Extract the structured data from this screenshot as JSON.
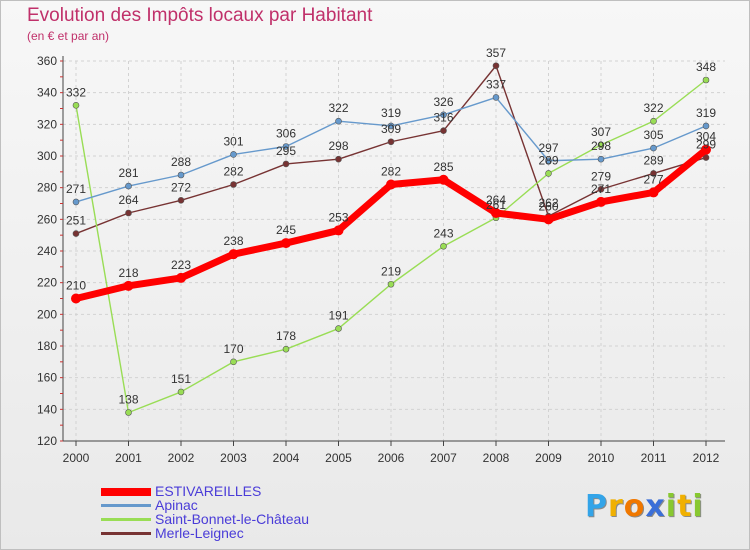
{
  "colors": {
    "title": "#c0306a",
    "legend_text": "#4a3cd8"
  },
  "chart_data": {
    "type": "line",
    "title": "Evolution des Impôts locaux par Habitant",
    "subtitle": "(en € et par an)",
    "xlabel": "",
    "ylabel": "",
    "x": [
      "2000",
      "2001",
      "2002",
      "2003",
      "2004",
      "2005",
      "2006",
      "2007",
      "2008",
      "2009",
      "2010",
      "2011",
      "2012"
    ],
    "ylim": [
      120,
      360
    ],
    "yticks": [
      120,
      140,
      160,
      180,
      200,
      220,
      240,
      260,
      280,
      300,
      320,
      340,
      360
    ],
    "grid": true,
    "legend_position": "bottom-left",
    "series": [
      {
        "name": "ESTIVAREILLES",
        "color": "#ff0000",
        "values": [
          210,
          218,
          223,
          238,
          245,
          253,
          282,
          285,
          264,
          260,
          271,
          277,
          304
        ]
      },
      {
        "name": "Apinac",
        "color": "#6699cc",
        "values": [
          271,
          281,
          288,
          301,
          306,
          322,
          319,
          326,
          337,
          297,
          298,
          305,
          319
        ]
      },
      {
        "name": "Saint-Bonnet-le-Château",
        "color": "#99dd55",
        "values": [
          332,
          138,
          151,
          170,
          178,
          191,
          219,
          243,
          261,
          289,
          307,
          322,
          348
        ]
      },
      {
        "name": "Merle-Leignec",
        "color": "#773333",
        "values": [
          251,
          264,
          272,
          282,
          295,
          298,
          309,
          316,
          357,
          262,
          279,
          289,
          299
        ]
      }
    ]
  },
  "logo": {
    "letters": [
      "P",
      "r",
      "o",
      "x",
      "i",
      "t",
      "i"
    ],
    "colors": [
      "#33a4e8",
      "#f0b000",
      "#f07800",
      "#3b6fd8",
      "#88c830",
      "#f0b000",
      "#88c830"
    ]
  }
}
